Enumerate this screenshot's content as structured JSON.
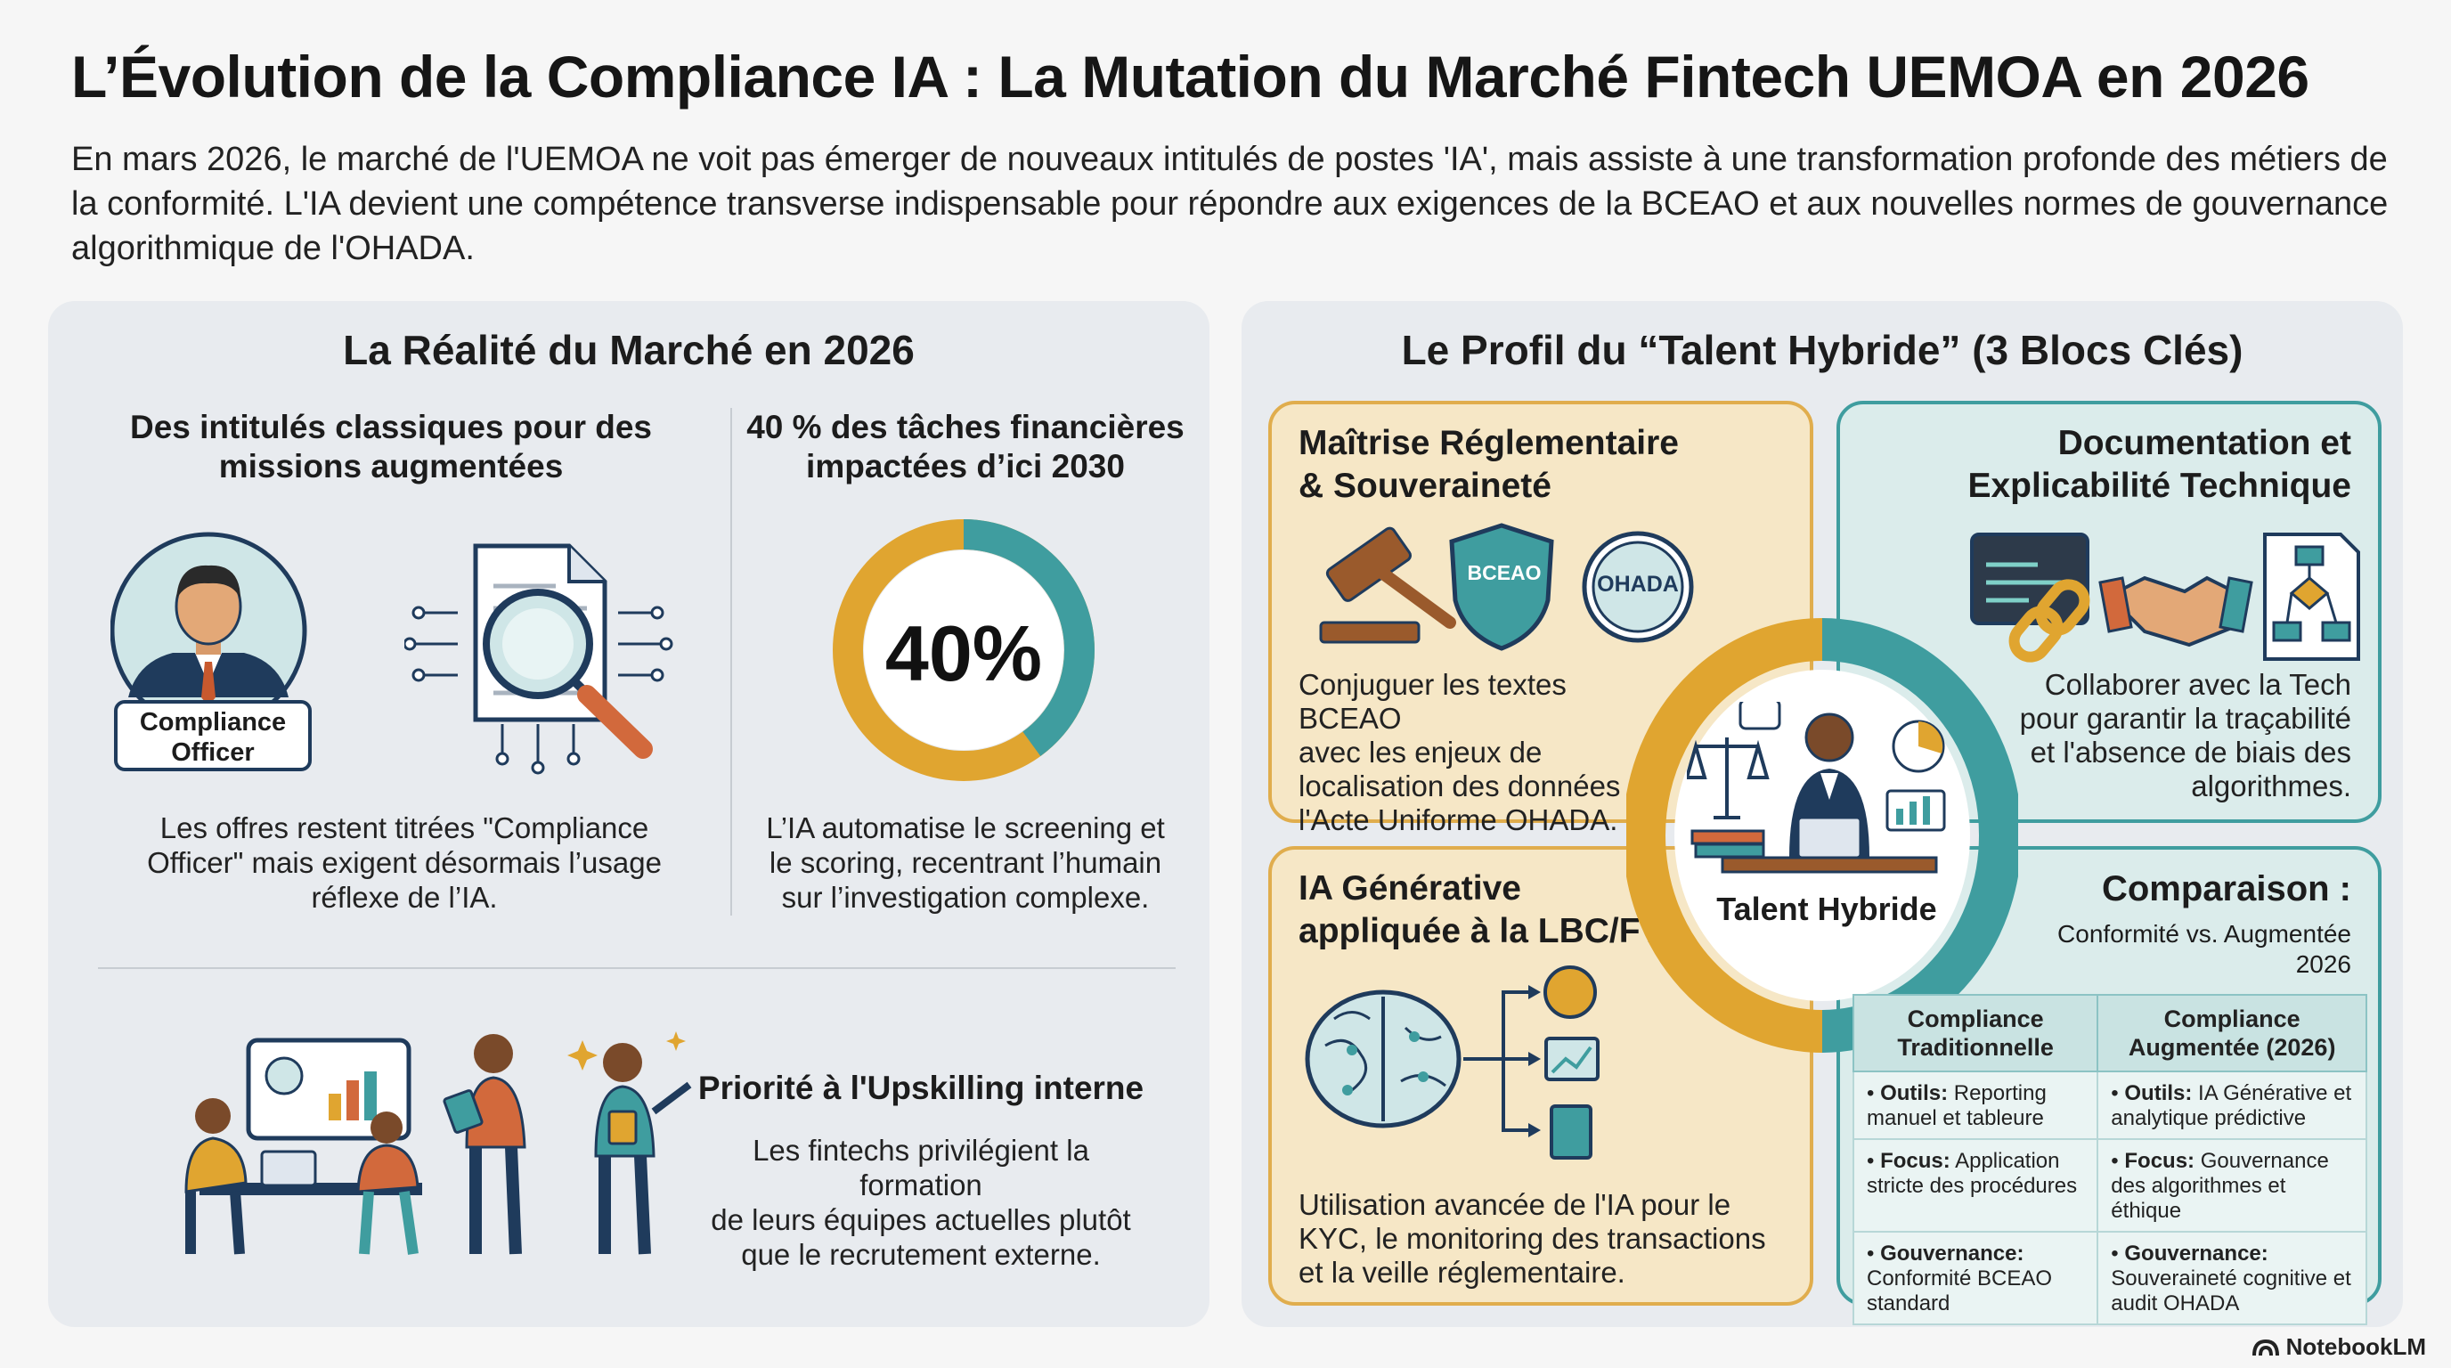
{
  "title": "L’Évolution de la Compliance IA : La Mutation du Marché Fintech UEMOA en 2026",
  "intro": "En mars 2026, le marché de l'UEMOA ne voit pas émerger de nouveaux intitulés de postes 'IA', mais assiste à une transformation profonde des métiers de la conformité. L'IA devient une compétence transverse indispensable pour répondre aux exigences de la BCEAO et aux nouvelles normes de gouvernance algorithmique de l'OHADA.",
  "left_panel": {
    "title": "La Réalité du Marché en 2026",
    "section1": {
      "title_line1": "Des intitulés classiques pour des",
      "title_line2": "missions augmentées",
      "badge_line1": "Compliance",
      "badge_line2": "Officer",
      "text_line1": "Les offres restent titrées \"Compliance",
      "text_line2": "Officer\" mais exigent désormais l’usage",
      "text_line3": "réflexe de l’IA."
    },
    "section2": {
      "title_line1": "40 % des tâches financières",
      "title_line2": "impactées d’ici 2030",
      "donut_label": "40%",
      "donut_value": 40,
      "text_line1": "L’IA automatise le screening et",
      "text_line2": "le scoring, recentrant l’humain",
      "text_line3": "sur l’investigation complexe."
    },
    "section3": {
      "title": "Priorité à l'Upskilling interne",
      "text_line1": "Les fintechs privilégient la formation",
      "text_line2": "de leurs équipes actuelles plutôt",
      "text_line3": "que le recrutement externe."
    }
  },
  "right_panel": {
    "title": "Le Profil du “Talent Hybride” (3 Blocs Clés)",
    "block1": {
      "title_line1": "Maîtrise Réglementaire",
      "title_line2": "& Souveraineté",
      "shield_label": "BCEAO",
      "seal_label": "OHADA",
      "text_line1": "Conjuguer les textes BCEAO",
      "text_line2": "avec les enjeux de",
      "text_line3": "localisation des données et",
      "text_line4": "l'Acte Uniforme OHADA."
    },
    "block2": {
      "title_line1": "Documentation et",
      "title_line2": "Explicabilité Technique",
      "text_line1": "Collaborer avec la Tech",
      "text_line2": "pour garantir la traçabilité",
      "text_line3": "et l'absence de biais des",
      "text_line4": "algorithmes."
    },
    "block3": {
      "title_line1": "IA Générative",
      "title_line2": "appliquée à la LBC/FT",
      "text_line1": "Utilisation avancée de l'IA pour le",
      "text_line2": "KYC, le monitoring des transactions",
      "text_line3": "et la veille réglementaire."
    },
    "hub_label": "Talent Hybride",
    "comparison": {
      "title": "Comparaison :",
      "subtitle_line1": "Conformité vs. Augmentée",
      "subtitle_line2": "2026",
      "col1_line1": "Compliance",
      "col1_line2": "Traditionnelle",
      "col2_line1": "Compliance",
      "col2_line2": "Augmentée (2026)",
      "rows": [
        {
          "left_key": "Outils:",
          "left_val": " Reporting manuel et tableure",
          "right_key": "Outils:",
          "right_val": " IA Générative et analytique prédictive"
        },
        {
          "left_key": "Focus:",
          "left_val": " Application stricte des procédures",
          "right_key": "Focus:",
          "right_val": " Gouvernance des algorithmes et éthique"
        },
        {
          "left_key": "Gouvernance:",
          "left_val": " Conformité BCEAO standard",
          "right_key": "Gouvernance:",
          "right_val": " Souveraineté cognitive et audit OHADA"
        }
      ]
    }
  },
  "brand": "NotebookLM",
  "colors": {
    "accent_orange": "#e0a530",
    "accent_teal": "#3f9d9f",
    "navy": "#1f3b5c",
    "panel_bg": "#e8ebef"
  }
}
